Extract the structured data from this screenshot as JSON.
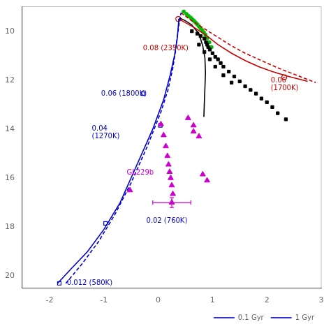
{
  "chart_data": {
    "type": "scatter",
    "xlim": [
      -2.5,
      3.0
    ],
    "ylim": [
      20.5,
      9.0
    ],
    "xticks": [
      -2,
      -1,
      0,
      1,
      2,
      3
    ],
    "yticks": [
      10,
      12,
      14,
      16,
      18,
      20
    ],
    "grid": false,
    "legend": "lower right",
    "series": [
      {
        "name": "0.1 Gyr",
        "type": "line",
        "line_style": "dashed",
        "color": "#0000cc",
        "x": [
          -1.7,
          -1.4,
          -1.1,
          -0.8,
          -0.5,
          -0.2,
          0.05,
          0.18,
          0.27,
          0.32,
          0.36,
          0.39,
          0.42
        ],
        "values": [
          20.3,
          19.5,
          18.6,
          17.5,
          16.2,
          14.7,
          13.3,
          12.4,
          11.5,
          10.8,
          10.1,
          9.6,
          9.25
        ]
      },
      {
        "name": "1 Gyr",
        "type": "line",
        "line_style": "solid",
        "color": "#0000cc",
        "x": [
          -1.85,
          -1.6,
          -1.3,
          -1.0,
          -0.7,
          -0.4,
          -0.1,
          0.1,
          0.22,
          0.3,
          0.35,
          0.37,
          0.38
        ],
        "values": [
          20.3,
          19.7,
          19.0,
          18.1,
          17.0,
          15.5,
          14.0,
          12.8,
          11.8,
          11.0,
          10.3,
          9.8,
          9.5
        ]
      },
      {
        "type": "line",
        "line_style": "solid",
        "color": "#cc0000",
        "x": [
          0.37,
          0.5,
          0.7,
          0.9,
          1.1,
          1.35,
          1.6,
          1.85,
          2.1,
          2.4,
          2.75
        ],
        "values": [
          9.5,
          9.65,
          9.9,
          10.2,
          10.55,
          10.9,
          11.2,
          11.45,
          11.65,
          11.85,
          12.05
        ]
      },
      {
        "type": "line",
        "line_style": "dashed",
        "color": "#cc0000",
        "x": [
          0.42,
          0.6,
          0.85,
          1.1,
          1.35,
          1.6,
          1.9,
          2.2,
          2.55,
          2.9
        ],
        "values": [
          9.25,
          9.55,
          9.9,
          10.25,
          10.6,
          10.9,
          11.2,
          11.5,
          11.8,
          12.1
        ]
      },
      {
        "type": "line",
        "line_style": "solid",
        "color": "#000000",
        "x": [
          0.38,
          0.43,
          0.52,
          0.62,
          0.75,
          0.82,
          0.86,
          0.87,
          0.86,
          0.85,
          0.84
        ],
        "values": [
          9.5,
          9.5,
          9.6,
          9.75,
          10.1,
          10.6,
          11.1,
          11.7,
          12.3,
          12.9,
          13.5
        ]
      },
      {
        "type": "scatter",
        "marker": "square",
        "color": "#000000",
        "x": [
          0.62,
          0.72,
          0.78,
          0.85,
          0.88,
          0.9,
          0.92,
          0.95,
          1.0,
          1.05,
          1.1,
          1.15,
          1.2,
          1.3,
          1.4,
          1.5,
          1.6,
          1.7,
          1.8,
          1.9,
          2.0,
          2.1,
          2.2,
          2.35,
          0.75,
          0.85,
          0.95,
          1.05,
          1.2,
          1.35
        ],
        "values": [
          10.0,
          10.1,
          10.2,
          10.3,
          10.45,
          10.55,
          10.65,
          10.75,
          10.9,
          11.05,
          11.15,
          11.3,
          11.45,
          11.65,
          11.85,
          12.05,
          12.25,
          12.4,
          12.55,
          12.75,
          12.9,
          13.1,
          13.35,
          13.6,
          10.55,
          10.85,
          11.15,
          11.45,
          11.8,
          12.1
        ]
      },
      {
        "type": "scatter",
        "marker": "circle",
        "color": "#00bb00",
        "x": [
          0.47,
          0.52,
          0.56,
          0.6,
          0.63,
          0.66,
          0.69,
          0.72,
          0.75,
          0.78,
          0.81,
          0.84,
          0.87,
          0.9,
          0.94,
          0.98
        ],
        "values": [
          9.2,
          9.3,
          9.38,
          9.45,
          9.52,
          9.58,
          9.65,
          9.72,
          9.8,
          9.88,
          9.96,
          10.05,
          10.15,
          10.28,
          10.45,
          10.65
        ]
      },
      {
        "type": "scatter",
        "marker": "triangle",
        "color": "#cc00cc",
        "x": [
          0.05,
          0.1,
          0.14,
          0.17,
          0.19,
          0.21,
          0.23,
          0.25,
          0.27,
          0.55,
          0.65,
          0.82,
          -0.52
        ],
        "values": [
          13.8,
          14.25,
          14.7,
          15.1,
          15.45,
          15.75,
          16.0,
          16.3,
          16.65,
          13.55,
          13.85,
          15.85,
          16.5
        ]
      },
      {
        "type": "scatter",
        "marker": "triangle",
        "color": "#cc00cc",
        "x": [
          0.65,
          0.75,
          0.9
        ],
        "values": [
          14.1,
          14.3,
          16.1
        ]
      },
      {
        "type": "scatter",
        "marker": "triangle",
        "color": "#cc00cc",
        "x": [
          0.25
        ],
        "values": [
          17.0
        ],
        "xerr": [
          0.35
        ],
        "yerr": [
          0.2
        ]
      },
      {
        "type": "scatter",
        "marker": "open_square",
        "color": "#0000cc",
        "x": [
          -1.82,
          -0.97,
          0.04,
          -0.28
        ],
        "values": [
          20.3,
          17.85,
          13.85,
          12.55
        ]
      },
      {
        "type": "scatter",
        "marker": "open_circle",
        "color": "#cc0000",
        "x": [
          0.37
        ],
        "values": [
          9.5
        ]
      },
      {
        "type": "scatter",
        "marker": "open_circle",
        "color": "#cc0000",
        "x": [
          2.32
        ],
        "values": [
          11.88
        ]
      }
    ],
    "annotations": [
      {
        "x": -1.68,
        "y": 20.15,
        "text": "0.012 (580K)",
        "color": "#0000cc"
      },
      {
        "x": -0.22,
        "y": 17.6,
        "text": "0.02 (760K)",
        "color": "#0000cc"
      },
      {
        "x": -1.22,
        "y": 13.85,
        "text": "0.04\n(1270K)",
        "color": "#0000cc"
      },
      {
        "x": -1.05,
        "y": 12.42,
        "text": "0.06 (1800K)",
        "color": "#0000cc"
      },
      {
        "x": -0.28,
        "y": 10.55,
        "text": "0.08 (2350K)",
        "color": "#cc0000"
      },
      {
        "x": 2.07,
        "y": 11.88,
        "text": "0.06\n(1700K)",
        "color": "#cc0000"
      },
      {
        "x": -0.58,
        "y": 15.65,
        "text": "GL229b",
        "color": "#cc00cc"
      }
    ]
  }
}
